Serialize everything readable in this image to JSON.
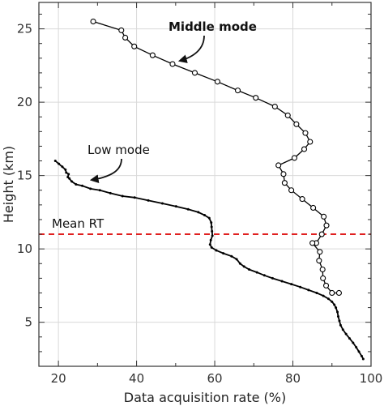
{
  "chart_data": {
    "type": "line",
    "xlabel": "Data acquisition rate (%)",
    "ylabel": "Height (km)",
    "xlim": [
      15,
      100
    ],
    "ylim": [
      2,
      26.8
    ],
    "xticks": [
      20,
      40,
      60,
      80,
      100
    ],
    "yticks": [
      5,
      10,
      15,
      20,
      25
    ],
    "grid": true,
    "series": [
      {
        "name": "Middle mode",
        "marker": "open-circle",
        "color": "#000000",
        "points": [
          [
            28.9,
            25.5
          ],
          [
            36.1,
            24.9
          ],
          [
            37.1,
            24.4
          ],
          [
            39.4,
            23.8
          ],
          [
            44.1,
            23.2
          ],
          [
            49.2,
            22.6
          ],
          [
            54.9,
            22.0
          ],
          [
            60.7,
            21.4
          ],
          [
            65.9,
            20.8
          ],
          [
            70.5,
            20.3
          ],
          [
            75.4,
            19.7
          ],
          [
            78.7,
            19.1
          ],
          [
            80.9,
            18.5
          ],
          [
            83.2,
            17.9
          ],
          [
            84.4,
            17.3
          ],
          [
            82.9,
            16.8
          ],
          [
            80.4,
            16.2
          ],
          [
            76.3,
            15.7
          ],
          [
            77.6,
            15.1
          ],
          [
            77.9,
            14.5
          ],
          [
            79.6,
            14.0
          ],
          [
            82.4,
            13.4
          ],
          [
            85.2,
            12.8
          ],
          [
            87.9,
            12.2
          ],
          [
            88.6,
            11.6
          ],
          [
            87.4,
            11.0
          ],
          [
            86.0,
            10.4
          ],
          [
            85.0,
            10.4
          ],
          [
            86.9,
            9.8
          ],
          [
            86.7,
            9.2
          ],
          [
            87.6,
            8.6
          ],
          [
            87.7,
            8.0
          ],
          [
            88.5,
            7.5
          ],
          [
            90.0,
            7.0
          ],
          [
            91.8,
            7.0
          ]
        ]
      },
      {
        "name": "Low mode",
        "marker": "dot",
        "color": "#000000",
        "points": [
          [
            19.2,
            16.0
          ],
          [
            20.1,
            15.8
          ],
          [
            21.0,
            15.6
          ],
          [
            21.8,
            15.4
          ],
          [
            22.0,
            15.2
          ],
          [
            22.6,
            15.1
          ],
          [
            22.4,
            14.9
          ],
          [
            22.8,
            14.8
          ],
          [
            23.4,
            14.6
          ],
          [
            24.5,
            14.4
          ],
          [
            26.1,
            14.3
          ],
          [
            28.2,
            14.1
          ],
          [
            30.6,
            14.0
          ],
          [
            33.3,
            13.8
          ],
          [
            36.4,
            13.6
          ],
          [
            39.5,
            13.5
          ],
          [
            43.0,
            13.3
          ],
          [
            46.6,
            13.1
          ],
          [
            50.1,
            12.9
          ],
          [
            53.2,
            12.7
          ],
          [
            55.8,
            12.5
          ],
          [
            57.4,
            12.3
          ],
          [
            58.6,
            12.1
          ],
          [
            59.1,
            11.8
          ],
          [
            59.2,
            11.5
          ],
          [
            59.3,
            11.2
          ],
          [
            59.4,
            10.9
          ],
          [
            59.0,
            10.6
          ],
          [
            58.8,
            10.3
          ],
          [
            59.2,
            10.1
          ],
          [
            60.4,
            9.9
          ],
          [
            62.2,
            9.7
          ],
          [
            64.3,
            9.5
          ],
          [
            65.6,
            9.3
          ],
          [
            66.5,
            9.0
          ],
          [
            67.5,
            8.8
          ],
          [
            68.8,
            8.6
          ],
          [
            70.8,
            8.4
          ],
          [
            72.7,
            8.2
          ],
          [
            74.8,
            8.0
          ],
          [
            77.2,
            7.8
          ],
          [
            79.6,
            7.6
          ],
          [
            81.9,
            7.4
          ],
          [
            84.0,
            7.2
          ],
          [
            86.1,
            7.0
          ],
          [
            87.8,
            6.8
          ],
          [
            89.1,
            6.6
          ],
          [
            90.0,
            6.4
          ],
          [
            90.6,
            6.2
          ],
          [
            91.0,
            6.0
          ],
          [
            91.4,
            5.7
          ],
          [
            91.6,
            5.4
          ],
          [
            91.9,
            5.1
          ],
          [
            92.2,
            4.8
          ],
          [
            92.8,
            4.5
          ],
          [
            93.6,
            4.2
          ],
          [
            94.5,
            3.9
          ],
          [
            95.4,
            3.6
          ],
          [
            96.2,
            3.3
          ],
          [
            96.9,
            3.0
          ],
          [
            97.6,
            2.7
          ],
          [
            98.0,
            2.5
          ]
        ]
      }
    ],
    "reference_line": {
      "label": "Mean RT",
      "y": 11.0,
      "color": "#e02020",
      "style": "dashed"
    },
    "annotations": [
      {
        "text": "Middle mode",
        "series": "Middle mode"
      },
      {
        "text": "Low mode",
        "series": "Low mode"
      }
    ]
  }
}
